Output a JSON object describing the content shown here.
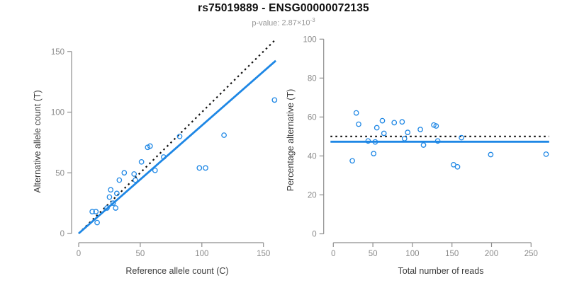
{
  "header": {
    "title": "rs75019889 - ENSG00000072135",
    "pvalue_label": "p-value:",
    "pvalue_mantissa": "2.87×10",
    "pvalue_exponent": "-3"
  },
  "colors": {
    "accent_blue": "#1E87E5",
    "axis_line": "#8E8E8E",
    "tick_label": "#8A8A8A",
    "axis_title": "#3C3C3C",
    "title_text": "#111111",
    "subtitle_text": "#979797",
    "dotted_line": "#111111"
  },
  "chart_data": [
    {
      "type": "scatter",
      "panel": "left",
      "xlabel": "Reference allele count (C)",
      "ylabel": "Alternative allele count (T)",
      "xticks": [
        0,
        50,
        100,
        150
      ],
      "yticks": [
        0,
        50,
        100,
        150
      ],
      "xlim": [
        0,
        160
      ],
      "ylim": [
        0,
        160
      ],
      "grid": false,
      "points": [
        [
          11,
          18
        ],
        [
          14,
          18
        ],
        [
          15,
          9
        ],
        [
          23,
          21
        ],
        [
          25,
          30
        ],
        [
          26,
          36
        ],
        [
          28,
          25
        ],
        [
          30,
          21
        ],
        [
          31,
          33
        ],
        [
          33,
          44
        ],
        [
          37,
          50
        ],
        [
          45,
          49
        ],
        [
          46,
          44
        ],
        [
          51,
          59
        ],
        [
          56,
          71
        ],
        [
          58,
          72
        ],
        [
          62,
          52
        ],
        [
          69,
          63
        ],
        [
          82,
          80
        ],
        [
          98,
          54
        ],
        [
          103,
          54
        ],
        [
          118,
          81
        ],
        [
          159,
          110
        ]
      ],
      "lines": {
        "dotted_identity": {
          "style": "dotted",
          "slope": 1,
          "intercept": 0
        },
        "fit": {
          "style": "solid",
          "slope": 0.89,
          "intercept": 0
        }
      }
    },
    {
      "type": "scatter",
      "panel": "right",
      "xlabel": "Total number of reads",
      "ylabel": "Percentage alternative (T)",
      "xticks": [
        0,
        50,
        100,
        150,
        200,
        250
      ],
      "yticks": [
        0,
        20,
        40,
        60,
        80,
        100
      ],
      "xlim": [
        0,
        272
      ],
      "ylim": [
        0,
        100
      ],
      "grid": false,
      "points": [
        [
          29,
          62.1
        ],
        [
          32,
          56.3
        ],
        [
          24,
          37.5
        ],
        [
          44,
          47.7
        ],
        [
          55,
          54.5
        ],
        [
          62,
          58.1
        ],
        [
          53,
          47.2
        ],
        [
          51,
          41.2
        ],
        [
          64,
          51.6
        ],
        [
          77,
          57.1
        ],
        [
          87,
          57.5
        ],
        [
          94,
          52.1
        ],
        [
          90,
          48.9
        ],
        [
          110,
          53.6
        ],
        [
          127,
          55.9
        ],
        [
          130,
          55.4
        ],
        [
          114,
          45.6
        ],
        [
          132,
          47.7
        ],
        [
          162,
          49.4
        ],
        [
          152,
          35.5
        ],
        [
          157,
          34.4
        ],
        [
          199,
          40.7
        ],
        [
          269,
          40.9
        ]
      ],
      "lines": {
        "dotted_expected": {
          "style": "dotted",
          "y": 50
        },
        "fit": {
          "style": "solid",
          "y": 47.3
        }
      }
    }
  ]
}
